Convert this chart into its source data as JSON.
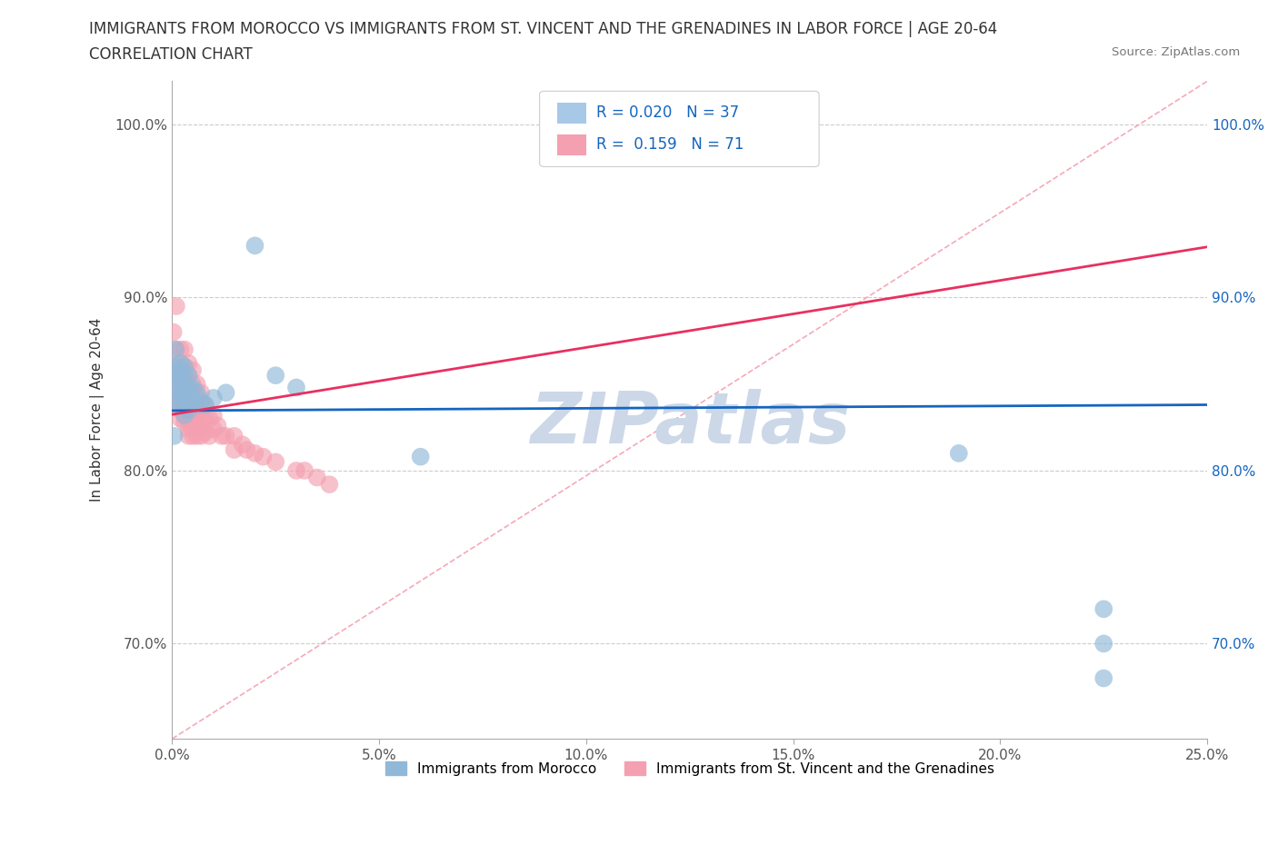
{
  "title_line1": "IMMIGRANTS FROM MOROCCO VS IMMIGRANTS FROM ST. VINCENT AND THE GRENADINES IN LABOR FORCE | AGE 20-64",
  "title_line2": "CORRELATION CHART",
  "source": "Source: ZipAtlas.com",
  "ylabel": "In Labor Force | Age 20-64",
  "legend_entries": [
    {
      "label": "Immigrants from Morocco",
      "color": "#a8c8e8",
      "R": "0.020",
      "N": "37"
    },
    {
      "label": "Immigrants from St. Vincent and the Grenadines",
      "color": "#f4a0b0",
      "R": "0.159",
      "N": "71"
    }
  ],
  "xlim": [
    0.0,
    0.25
  ],
  "ylim": [
    0.645,
    1.025
  ],
  "xticks": [
    0.0,
    0.05,
    0.1,
    0.15,
    0.2,
    0.25
  ],
  "xticklabels": [
    "0.0%",
    "5.0%",
    "10.0%",
    "15.0%",
    "20.0%",
    "25.0%"
  ],
  "yticks": [
    0.7,
    0.8,
    0.9,
    1.0
  ],
  "yticklabels": [
    "70.0%",
    "80.0%",
    "90.0%",
    "100.0%"
  ],
  "morocco_x": [
    0.0005,
    0.0008,
    0.001,
    0.001,
    0.001,
    0.0015,
    0.0015,
    0.002,
    0.002,
    0.002,
    0.002,
    0.002,
    0.003,
    0.003,
    0.003,
    0.003,
    0.003,
    0.004,
    0.004,
    0.004,
    0.004,
    0.005,
    0.005,
    0.006,
    0.006,
    0.007,
    0.008,
    0.01,
    0.013,
    0.02,
    0.025,
    0.03,
    0.06,
    0.19,
    0.225,
    0.225,
    0.225
  ],
  "morocco_y": [
    0.82,
    0.87,
    0.84,
    0.85,
    0.86,
    0.845,
    0.855,
    0.838,
    0.845,
    0.852,
    0.858,
    0.862,
    0.832,
    0.84,
    0.848,
    0.855,
    0.86,
    0.835,
    0.842,
    0.848,
    0.855,
    0.84,
    0.848,
    0.838,
    0.845,
    0.84,
    0.838,
    0.842,
    0.845,
    0.93,
    0.855,
    0.848,
    0.808,
    0.81,
    0.68,
    0.7,
    0.72
  ],
  "stvincent_x": [
    0.0003,
    0.0005,
    0.0008,
    0.001,
    0.001,
    0.001,
    0.001,
    0.0015,
    0.0015,
    0.002,
    0.002,
    0.002,
    0.002,
    0.002,
    0.002,
    0.0025,
    0.003,
    0.003,
    0.003,
    0.003,
    0.003,
    0.003,
    0.003,
    0.004,
    0.004,
    0.004,
    0.004,
    0.004,
    0.004,
    0.004,
    0.004,
    0.004,
    0.005,
    0.005,
    0.005,
    0.005,
    0.005,
    0.005,
    0.005,
    0.006,
    0.006,
    0.006,
    0.006,
    0.006,
    0.006,
    0.007,
    0.007,
    0.007,
    0.007,
    0.007,
    0.008,
    0.008,
    0.008,
    0.009,
    0.009,
    0.01,
    0.01,
    0.011,
    0.012,
    0.013,
    0.015,
    0.015,
    0.017,
    0.018,
    0.02,
    0.022,
    0.025,
    0.03,
    0.032,
    0.035,
    0.038
  ],
  "stvincent_y": [
    0.88,
    0.86,
    0.84,
    0.895,
    0.87,
    0.855,
    0.84,
    0.86,
    0.848,
    0.87,
    0.858,
    0.848,
    0.84,
    0.835,
    0.83,
    0.855,
    0.87,
    0.86,
    0.852,
    0.845,
    0.838,
    0.832,
    0.828,
    0.862,
    0.855,
    0.848,
    0.842,
    0.838,
    0.832,
    0.828,
    0.824,
    0.82,
    0.858,
    0.85,
    0.842,
    0.836,
    0.83,
    0.825,
    0.82,
    0.85,
    0.843,
    0.836,
    0.83,
    0.825,
    0.82,
    0.845,
    0.838,
    0.832,
    0.826,
    0.82,
    0.838,
    0.83,
    0.822,
    0.83,
    0.82,
    0.832,
    0.824,
    0.826,
    0.82,
    0.82,
    0.82,
    0.812,
    0.815,
    0.812,
    0.81,
    0.808,
    0.805,
    0.8,
    0.8,
    0.796,
    0.792
  ],
  "morocco_line_color": "#1565c0",
  "stvincent_line_color": "#e83060",
  "diagonal_line_color": "#f4a0b0",
  "scatter_morocco_color": "#90b8d8",
  "scatter_stvincent_color": "#f4a0b0",
  "background_color": "#ffffff",
  "watermark_text": "ZIPatlas",
  "watermark_color": "#ccd8e8"
}
